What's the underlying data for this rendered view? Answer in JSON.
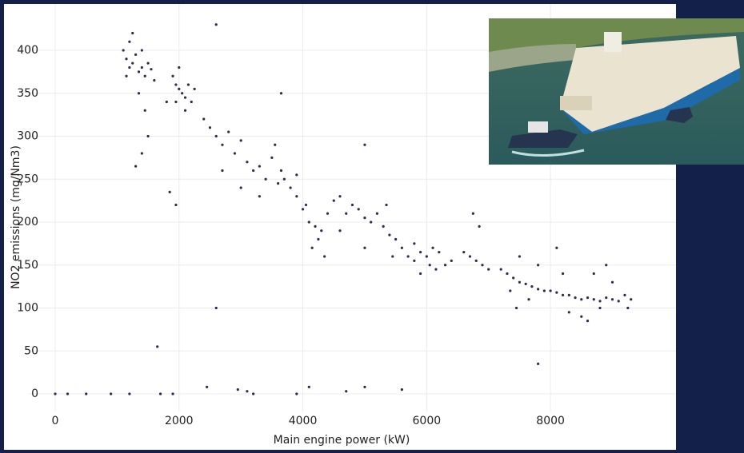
{
  "chart_data": {
    "type": "scatter",
    "x_label": "Main engine power (kW)",
    "y_label": "NO2 emissions (mg/Nm3)",
    "color": "#2e2b4f",
    "grid": true,
    "xlim": [
      -300,
      9800
    ],
    "ylim": [
      -20,
      435
    ],
    "xticks": [
      0,
      2000,
      4000,
      6000,
      8000
    ],
    "yticks": [
      0,
      50,
      100,
      150,
      200,
      250,
      300,
      350,
      400
    ],
    "x": [
      1100,
      1150,
      1200,
      1250,
      1300,
      1350,
      1400,
      1450,
      1500,
      1550,
      1600,
      1250,
      1400,
      1350,
      1450,
      1500,
      1400,
      1300,
      1200,
      1150,
      1900,
      1950,
      2000,
      2050,
      2100,
      2150,
      2200,
      2000,
      2100,
      1950,
      2250,
      1800,
      2400,
      2500,
      2600,
      2700,
      2800,
      2900,
      3000,
      3100,
      3200,
      3300,
      3400,
      3500,
      3600,
      2700,
      3000,
      3300,
      3550,
      3650,
      3700,
      3800,
      3900,
      4000,
      4100,
      4200,
      4250,
      4300,
      4150,
      4400,
      4500,
      4600,
      4700,
      4800,
      3900,
      4350,
      4050,
      4600,
      4900,
      5000,
      5100,
      5200,
      5300,
      5400,
      5500,
      5600,
      5350,
      5000,
      5450,
      5700,
      5800,
      5900,
      6000,
      6100,
      6200,
      6300,
      5900,
      6050,
      6400,
      5800,
      6150,
      6600,
      6700,
      6800,
      6900,
      6750,
      6850,
      7000,
      7200,
      7300,
      7400,
      7500,
      7600,
      7700,
      7800,
      7900,
      7350,
      7500,
      7650,
      7800,
      7450,
      8000,
      8100,
      8200,
      8300,
      8400,
      8500,
      8600,
      8700,
      8800,
      8900,
      9000,
      9100,
      9200,
      9300,
      8300,
      8500,
      8700,
      8900,
      8100,
      8600,
      9000,
      8800,
      8200,
      9250,
      2600,
      2600,
      1650,
      1850,
      1950,
      3650,
      5000,
      7800,
      0,
      200,
      500,
      900,
      1200,
      1700,
      1900,
      2450,
      2950,
      3100,
      3200,
      3900,
      4100,
      4700,
      5000,
      5600
    ],
    "values": [
      400,
      390,
      410,
      385,
      395,
      375,
      380,
      370,
      385,
      378,
      365,
      420,
      400,
      350,
      330,
      300,
      280,
      265,
      380,
      370,
      370,
      360,
      355,
      350,
      345,
      360,
      340,
      380,
      330,
      340,
      355,
      340,
      320,
      310,
      300,
      290,
      305,
      280,
      295,
      270,
      260,
      265,
      250,
      275,
      245,
      260,
      240,
      230,
      290,
      260,
      250,
      240,
      230,
      215,
      200,
      195,
      180,
      190,
      170,
      210,
      225,
      230,
      210,
      220,
      255,
      160,
      220,
      190,
      215,
      205,
      200,
      210,
      195,
      185,
      180,
      170,
      220,
      170,
      160,
      160,
      155,
      165,
      160,
      170,
      165,
      150,
      140,
      150,
      155,
      175,
      145,
      165,
      160,
      155,
      150,
      210,
      195,
      145,
      145,
      140,
      135,
      130,
      128,
      125,
      122,
      120,
      120,
      160,
      110,
      150,
      100,
      120,
      118,
      115,
      115,
      112,
      110,
      112,
      110,
      108,
      112,
      110,
      108,
      115,
      110,
      95,
      90,
      140,
      150,
      170,
      85,
      130,
      100,
      140,
      100,
      430,
      100,
      55,
      235,
      220,
      350,
      290,
      35,
      0,
      0,
      0,
      0,
      0,
      0,
      0,
      8,
      5,
      3,
      0,
      0,
      8,
      3,
      8,
      5
    ]
  }
}
